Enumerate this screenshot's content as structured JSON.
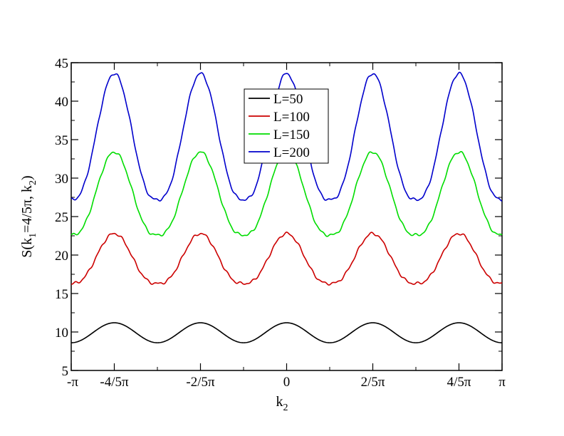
{
  "chart_data": {
    "type": "line",
    "xlabel": "k",
    "xlabel_sub": "2",
    "ylabel_pre": "S(k",
    "ylabel_sub1": "1",
    "ylabel_mid": "=4/5π, k",
    "ylabel_sub2": "2",
    "ylabel_post": ")",
    "xlim": [
      -1,
      1
    ],
    "ylim": [
      5,
      45
    ],
    "x_ticks": [
      {
        "value": -1,
        "label": "-π"
      },
      {
        "value": -0.8,
        "label": "-4/5π"
      },
      {
        "value": -0.4,
        "label": "-2/5π"
      },
      {
        "value": 0,
        "label": "0"
      },
      {
        "value": 0.4,
        "label": "2/5π"
      },
      {
        "value": 0.8,
        "label": "4/5π"
      },
      {
        "value": 1,
        "label": "π"
      }
    ],
    "y_ticks": [
      5,
      10,
      15,
      20,
      25,
      30,
      35,
      40,
      45
    ],
    "x_unit": "π",
    "period": 0.4,
    "legend_position": "top-center",
    "series": [
      {
        "name": "L=50",
        "color": "#000000",
        "min": 8.6,
        "max": 11.2
      },
      {
        "name": "L=100",
        "color": "#cc0000",
        "min": 16.3,
        "max": 22.8
      },
      {
        "name": "L=150",
        "color": "#00dd00",
        "min": 22.6,
        "max": 33.4
      },
      {
        "name": "L=200",
        "color": "#0000cc",
        "min": 27.2,
        "max": 43.6
      }
    ]
  }
}
